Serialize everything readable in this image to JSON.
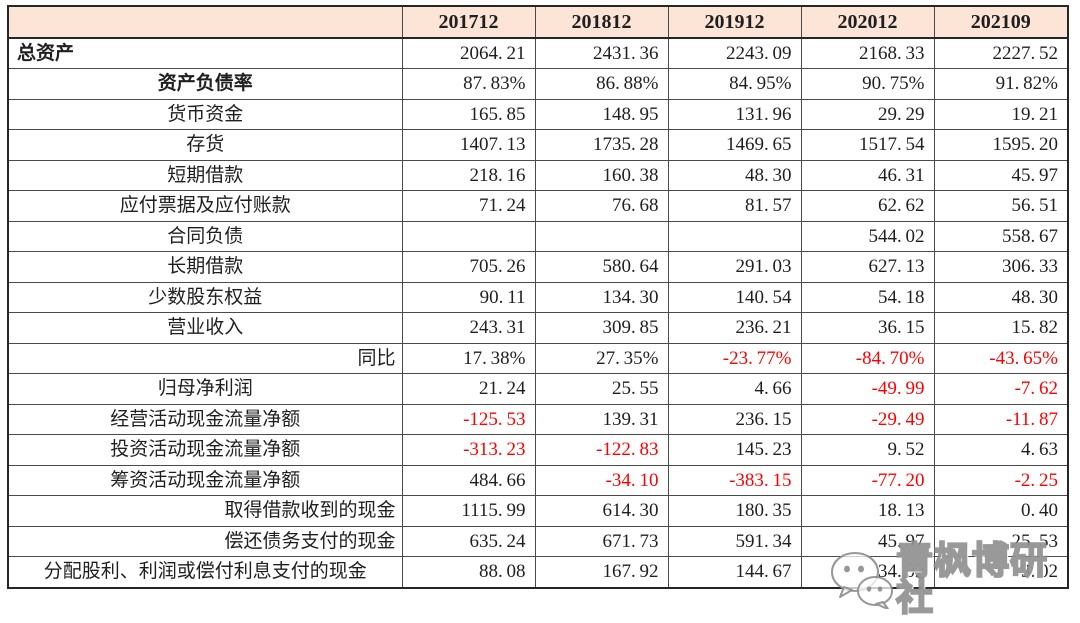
{
  "page": {
    "background": "#ffffff"
  },
  "table": {
    "corner_label": "",
    "columns": [
      "201712",
      "201812",
      "201912",
      "202012",
      "202109"
    ],
    "header_bg": "#fce4d6",
    "border_color": "#4a4a4a",
    "text_color": "#1f1f1f",
    "negative_color": "#ff0000",
    "rows": [
      {
        "label": "总资产",
        "label_align": "left",
        "bold": true,
        "values": [
          "2064.21",
          "2431.36",
          "2243.09",
          "2168.33",
          "2227.52"
        ]
      },
      {
        "label": "资产负债率",
        "label_align": "center",
        "bold": true,
        "values": [
          "87.83%",
          "86.88%",
          "84.95%",
          "90.75%",
          "91.82%"
        ]
      },
      {
        "label": "货币资金",
        "label_align": "center",
        "bold": false,
        "values": [
          "165.85",
          "148.95",
          "131.96",
          "29.29",
          "19.21"
        ]
      },
      {
        "label": "存货",
        "label_align": "center",
        "bold": false,
        "values": [
          "1407.13",
          "1735.28",
          "1469.65",
          "1517.54",
          "1595.20"
        ]
      },
      {
        "label": "短期借款",
        "label_align": "center",
        "bold": false,
        "values": [
          "218.16",
          "160.38",
          "48.30",
          "46.31",
          "45.97"
        ]
      },
      {
        "label": "应付票据及应付账款",
        "label_align": "center",
        "bold": false,
        "values": [
          "71.24",
          "76.68",
          "81.57",
          "62.62",
          "56.51"
        ]
      },
      {
        "label": "合同负债",
        "label_align": "center",
        "bold": false,
        "values": [
          "",
          "",
          "",
          "544.02",
          "558.67"
        ]
      },
      {
        "label": "长期借款",
        "label_align": "center",
        "bold": false,
        "values": [
          "705.26",
          "580.64",
          "291.03",
          "627.13",
          "306.33"
        ]
      },
      {
        "label": "少数股东权益",
        "label_align": "center",
        "bold": false,
        "values": [
          "90.11",
          "134.30",
          "140.54",
          "54.18",
          "48.30"
        ]
      },
      {
        "label": "营业收入",
        "label_align": "center",
        "bold": false,
        "values": [
          "243.31",
          "309.85",
          "236.21",
          "36.15",
          "15.82"
        ]
      },
      {
        "label": "同比",
        "label_align": "right",
        "bold": false,
        "values": [
          "17.38%",
          "27.35%",
          "-23.77%",
          "-84.70%",
          "-43.65%"
        ]
      },
      {
        "label": "归母净利润",
        "label_align": "center",
        "bold": false,
        "values": [
          "21.24",
          "25.55",
          "4.66",
          "-49.99",
          "-7.62"
        ]
      },
      {
        "label": "经营活动现金流量净额",
        "label_align": "center",
        "bold": false,
        "values": [
          "-125.53",
          "139.31",
          "236.15",
          "-29.49",
          "-11.87"
        ]
      },
      {
        "label": "投资活动现金流量净额",
        "label_align": "center",
        "bold": false,
        "values": [
          "-313.23",
          "-122.83",
          "145.23",
          "9.52",
          "4.63"
        ]
      },
      {
        "label": "筹资活动现金流量净额",
        "label_align": "center",
        "bold": false,
        "values": [
          "484.66",
          "-34.10",
          "-383.15",
          "-77.20",
          "-2.25"
        ]
      },
      {
        "label": "取得借款收到的现金",
        "label_align": "right",
        "bold": false,
        "values": [
          "1115.99",
          "614.30",
          "180.35",
          "18.13",
          "0.40"
        ]
      },
      {
        "label": "偿还债务支付的现金",
        "label_align": "right",
        "bold": false,
        "values": [
          "635.24",
          "671.73",
          "591.34",
          "45.97",
          "25.53"
        ]
      },
      {
        "label": "分配股利、利润或偿付利息支付的现金",
        "label_align": "center",
        "bold": false,
        "values": [
          "88.08",
          "167.92",
          "144.67",
          "34.02",
          "3.02"
        ]
      }
    ]
  },
  "watermark": {
    "text": "青枫博研社",
    "icon": "chat-bubbles-icon"
  }
}
